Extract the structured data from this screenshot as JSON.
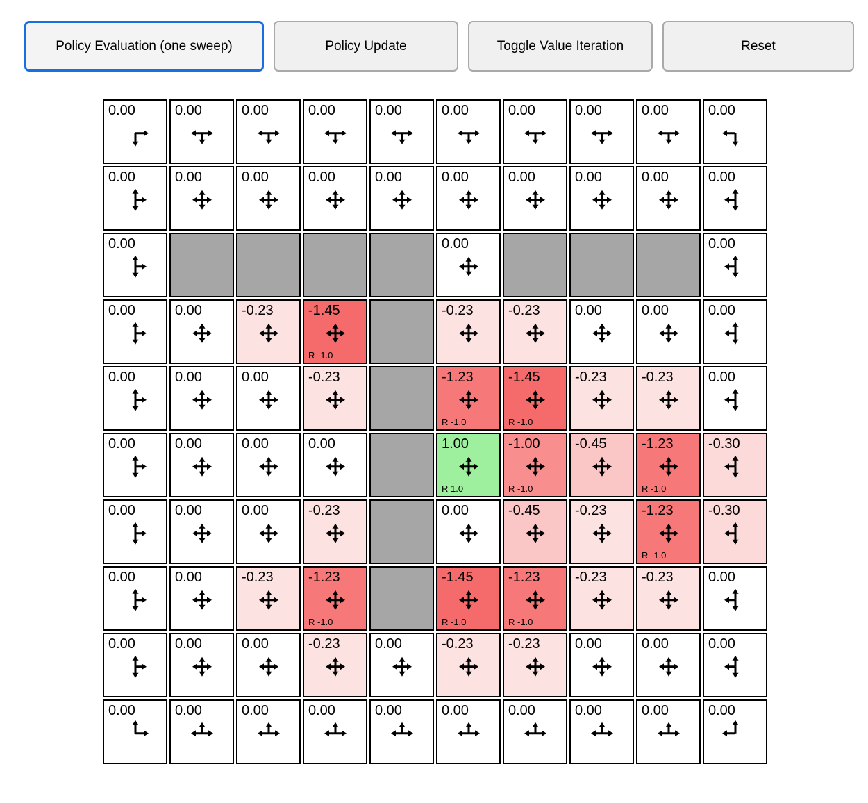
{
  "toolbar": {
    "active_border_color": "#1a6ee0",
    "buttons": [
      {
        "label": "Policy Evaluation (one sweep)",
        "active": true
      },
      {
        "label": "Policy Update",
        "active": false
      },
      {
        "label": "Toggle Value Iteration",
        "active": false
      },
      {
        "label": "Reset",
        "active": false
      }
    ]
  },
  "grid": {
    "rows": 10,
    "cols": 10,
    "colors": {
      "wall": "#a6a6a6",
      "border": "#000000",
      "values": {
        "0.00": "#ffffff",
        "-0.23": "#fde2e2",
        "-0.30": "#fcdada",
        "-0.45": "#fac6c6",
        "-1.00": "#f88e8e",
        "-1.23": "#f67878",
        "-1.45": "#f56a6a",
        "1.00": "#9ef09e"
      }
    },
    "cells": [
      [
        {
          "value": "0.00",
          "arrows": [
            "down",
            "right"
          ]
        },
        {
          "value": "0.00",
          "arrows": [
            "down",
            "left",
            "right"
          ]
        },
        {
          "value": "0.00",
          "arrows": [
            "down",
            "left",
            "right"
          ]
        },
        {
          "value": "0.00",
          "arrows": [
            "down",
            "left",
            "right"
          ]
        },
        {
          "value": "0.00",
          "arrows": [
            "down",
            "left",
            "right"
          ]
        },
        {
          "value": "0.00",
          "arrows": [
            "down",
            "left",
            "right"
          ]
        },
        {
          "value": "0.00",
          "arrows": [
            "down",
            "left",
            "right"
          ]
        },
        {
          "value": "0.00",
          "arrows": [
            "down",
            "left",
            "right"
          ]
        },
        {
          "value": "0.00",
          "arrows": [
            "down",
            "left",
            "right"
          ]
        },
        {
          "value": "0.00",
          "arrows": [
            "down",
            "left"
          ]
        }
      ],
      [
        {
          "value": "0.00",
          "arrows": [
            "up",
            "down",
            "right"
          ]
        },
        {
          "value": "0.00",
          "arrows": [
            "up",
            "down",
            "left",
            "right"
          ]
        },
        {
          "value": "0.00",
          "arrows": [
            "up",
            "down",
            "left",
            "right"
          ]
        },
        {
          "value": "0.00",
          "arrows": [
            "up",
            "down",
            "left",
            "right"
          ]
        },
        {
          "value": "0.00",
          "arrows": [
            "up",
            "down",
            "left",
            "right"
          ]
        },
        {
          "value": "0.00",
          "arrows": [
            "up",
            "down",
            "left",
            "right"
          ]
        },
        {
          "value": "0.00",
          "arrows": [
            "up",
            "down",
            "left",
            "right"
          ]
        },
        {
          "value": "0.00",
          "arrows": [
            "up",
            "down",
            "left",
            "right"
          ]
        },
        {
          "value": "0.00",
          "arrows": [
            "up",
            "down",
            "left",
            "right"
          ]
        },
        {
          "value": "0.00",
          "arrows": [
            "up",
            "down",
            "left"
          ]
        }
      ],
      [
        {
          "value": "0.00",
          "arrows": [
            "up",
            "down",
            "right"
          ]
        },
        {
          "wall": true
        },
        {
          "wall": true
        },
        {
          "wall": true
        },
        {
          "wall": true
        },
        {
          "value": "0.00",
          "arrows": [
            "up",
            "down",
            "left",
            "right"
          ]
        },
        {
          "wall": true
        },
        {
          "wall": true
        },
        {
          "wall": true
        },
        {
          "value": "0.00",
          "arrows": [
            "up",
            "down",
            "left"
          ]
        }
      ],
      [
        {
          "value": "0.00",
          "arrows": [
            "up",
            "down",
            "right"
          ]
        },
        {
          "value": "0.00",
          "arrows": [
            "up",
            "down",
            "left",
            "right"
          ]
        },
        {
          "value": "-0.23",
          "arrows": [
            "up",
            "down",
            "left",
            "right"
          ]
        },
        {
          "value": "-1.45",
          "arrows": [
            "up",
            "down",
            "left",
            "right"
          ],
          "reward": "R -1.0"
        },
        {
          "wall": true
        },
        {
          "value": "-0.23",
          "arrows": [
            "up",
            "down",
            "left",
            "right"
          ]
        },
        {
          "value": "-0.23",
          "arrows": [
            "up",
            "down",
            "left",
            "right"
          ]
        },
        {
          "value": "0.00",
          "arrows": [
            "up",
            "down",
            "left",
            "right"
          ]
        },
        {
          "value": "0.00",
          "arrows": [
            "up",
            "down",
            "left",
            "right"
          ]
        },
        {
          "value": "0.00",
          "arrows": [
            "up",
            "down",
            "left"
          ]
        }
      ],
      [
        {
          "value": "0.00",
          "arrows": [
            "up",
            "down",
            "right"
          ]
        },
        {
          "value": "0.00",
          "arrows": [
            "up",
            "down",
            "left",
            "right"
          ]
        },
        {
          "value": "0.00",
          "arrows": [
            "up",
            "down",
            "left",
            "right"
          ]
        },
        {
          "value": "-0.23",
          "arrows": [
            "up",
            "down",
            "left",
            "right"
          ]
        },
        {
          "wall": true
        },
        {
          "value": "-1.23",
          "arrows": [
            "up",
            "down",
            "left",
            "right"
          ],
          "reward": "R -1.0"
        },
        {
          "value": "-1.45",
          "arrows": [
            "up",
            "down",
            "left",
            "right"
          ],
          "reward": "R -1.0"
        },
        {
          "value": "-0.23",
          "arrows": [
            "up",
            "down",
            "left",
            "right"
          ]
        },
        {
          "value": "-0.23",
          "arrows": [
            "up",
            "down",
            "left",
            "right"
          ]
        },
        {
          "value": "0.00",
          "arrows": [
            "up",
            "down",
            "left"
          ]
        }
      ],
      [
        {
          "value": "0.00",
          "arrows": [
            "up",
            "down",
            "right"
          ]
        },
        {
          "value": "0.00",
          "arrows": [
            "up",
            "down",
            "left",
            "right"
          ]
        },
        {
          "value": "0.00",
          "arrows": [
            "up",
            "down",
            "left",
            "right"
          ]
        },
        {
          "value": "0.00",
          "arrows": [
            "up",
            "down",
            "left",
            "right"
          ]
        },
        {
          "wall": true
        },
        {
          "value": "1.00",
          "arrows": [
            "up",
            "down",
            "left",
            "right"
          ],
          "reward": "R 1.0"
        },
        {
          "value": "-1.00",
          "arrows": [
            "up",
            "down",
            "left",
            "right"
          ],
          "reward": "R -1.0"
        },
        {
          "value": "-0.45",
          "arrows": [
            "up",
            "down",
            "left",
            "right"
          ]
        },
        {
          "value": "-1.23",
          "arrows": [
            "up",
            "down",
            "left",
            "right"
          ],
          "reward": "R -1.0"
        },
        {
          "value": "-0.30",
          "arrows": [
            "up",
            "down",
            "left"
          ]
        }
      ],
      [
        {
          "value": "0.00",
          "arrows": [
            "up",
            "down",
            "right"
          ]
        },
        {
          "value": "0.00",
          "arrows": [
            "up",
            "down",
            "left",
            "right"
          ]
        },
        {
          "value": "0.00",
          "arrows": [
            "up",
            "down",
            "left",
            "right"
          ]
        },
        {
          "value": "-0.23",
          "arrows": [
            "up",
            "down",
            "left",
            "right"
          ]
        },
        {
          "wall": true
        },
        {
          "value": "0.00",
          "arrows": [
            "up",
            "down",
            "left",
            "right"
          ]
        },
        {
          "value": "-0.45",
          "arrows": [
            "up",
            "down",
            "left",
            "right"
          ]
        },
        {
          "value": "-0.23",
          "arrows": [
            "up",
            "down",
            "left",
            "right"
          ]
        },
        {
          "value": "-1.23",
          "arrows": [
            "up",
            "down",
            "left",
            "right"
          ],
          "reward": "R -1.0"
        },
        {
          "value": "-0.30",
          "arrows": [
            "up",
            "down",
            "left"
          ]
        }
      ],
      [
        {
          "value": "0.00",
          "arrows": [
            "up",
            "down",
            "right"
          ]
        },
        {
          "value": "0.00",
          "arrows": [
            "up",
            "down",
            "left",
            "right"
          ]
        },
        {
          "value": "-0.23",
          "arrows": [
            "up",
            "down",
            "left",
            "right"
          ]
        },
        {
          "value": "-1.23",
          "arrows": [
            "up",
            "down",
            "left",
            "right"
          ],
          "reward": "R -1.0"
        },
        {
          "wall": true
        },
        {
          "value": "-1.45",
          "arrows": [
            "up",
            "down",
            "left",
            "right"
          ],
          "reward": "R -1.0"
        },
        {
          "value": "-1.23",
          "arrows": [
            "up",
            "down",
            "left",
            "right"
          ],
          "reward": "R -1.0"
        },
        {
          "value": "-0.23",
          "arrows": [
            "up",
            "down",
            "left",
            "right"
          ]
        },
        {
          "value": "-0.23",
          "arrows": [
            "up",
            "down",
            "left",
            "right"
          ]
        },
        {
          "value": "0.00",
          "arrows": [
            "up",
            "down",
            "left"
          ]
        }
      ],
      [
        {
          "value": "0.00",
          "arrows": [
            "up",
            "down",
            "right"
          ]
        },
        {
          "value": "0.00",
          "arrows": [
            "up",
            "down",
            "left",
            "right"
          ]
        },
        {
          "value": "0.00",
          "arrows": [
            "up",
            "down",
            "left",
            "right"
          ]
        },
        {
          "value": "-0.23",
          "arrows": [
            "up",
            "down",
            "left",
            "right"
          ]
        },
        {
          "value": "0.00",
          "arrows": [
            "up",
            "down",
            "left",
            "right"
          ]
        },
        {
          "value": "-0.23",
          "arrows": [
            "up",
            "down",
            "left",
            "right"
          ]
        },
        {
          "value": "-0.23",
          "arrows": [
            "up",
            "down",
            "left",
            "right"
          ]
        },
        {
          "value": "0.00",
          "arrows": [
            "up",
            "down",
            "left",
            "right"
          ]
        },
        {
          "value": "0.00",
          "arrows": [
            "up",
            "down",
            "left",
            "right"
          ]
        },
        {
          "value": "0.00",
          "arrows": [
            "up",
            "down",
            "left"
          ]
        }
      ],
      [
        {
          "value": "0.00",
          "arrows": [
            "up",
            "right"
          ]
        },
        {
          "value": "0.00",
          "arrows": [
            "up",
            "left",
            "right"
          ]
        },
        {
          "value": "0.00",
          "arrows": [
            "up",
            "left",
            "right"
          ]
        },
        {
          "value": "0.00",
          "arrows": [
            "up",
            "left",
            "right"
          ]
        },
        {
          "value": "0.00",
          "arrows": [
            "up",
            "left",
            "right"
          ]
        },
        {
          "value": "0.00",
          "arrows": [
            "up",
            "left",
            "right"
          ]
        },
        {
          "value": "0.00",
          "arrows": [
            "up",
            "left",
            "right"
          ]
        },
        {
          "value": "0.00",
          "arrows": [
            "up",
            "left",
            "right"
          ]
        },
        {
          "value": "0.00",
          "arrows": [
            "up",
            "left",
            "right"
          ]
        },
        {
          "value": "0.00",
          "arrows": [
            "up",
            "left"
          ]
        }
      ]
    ]
  }
}
